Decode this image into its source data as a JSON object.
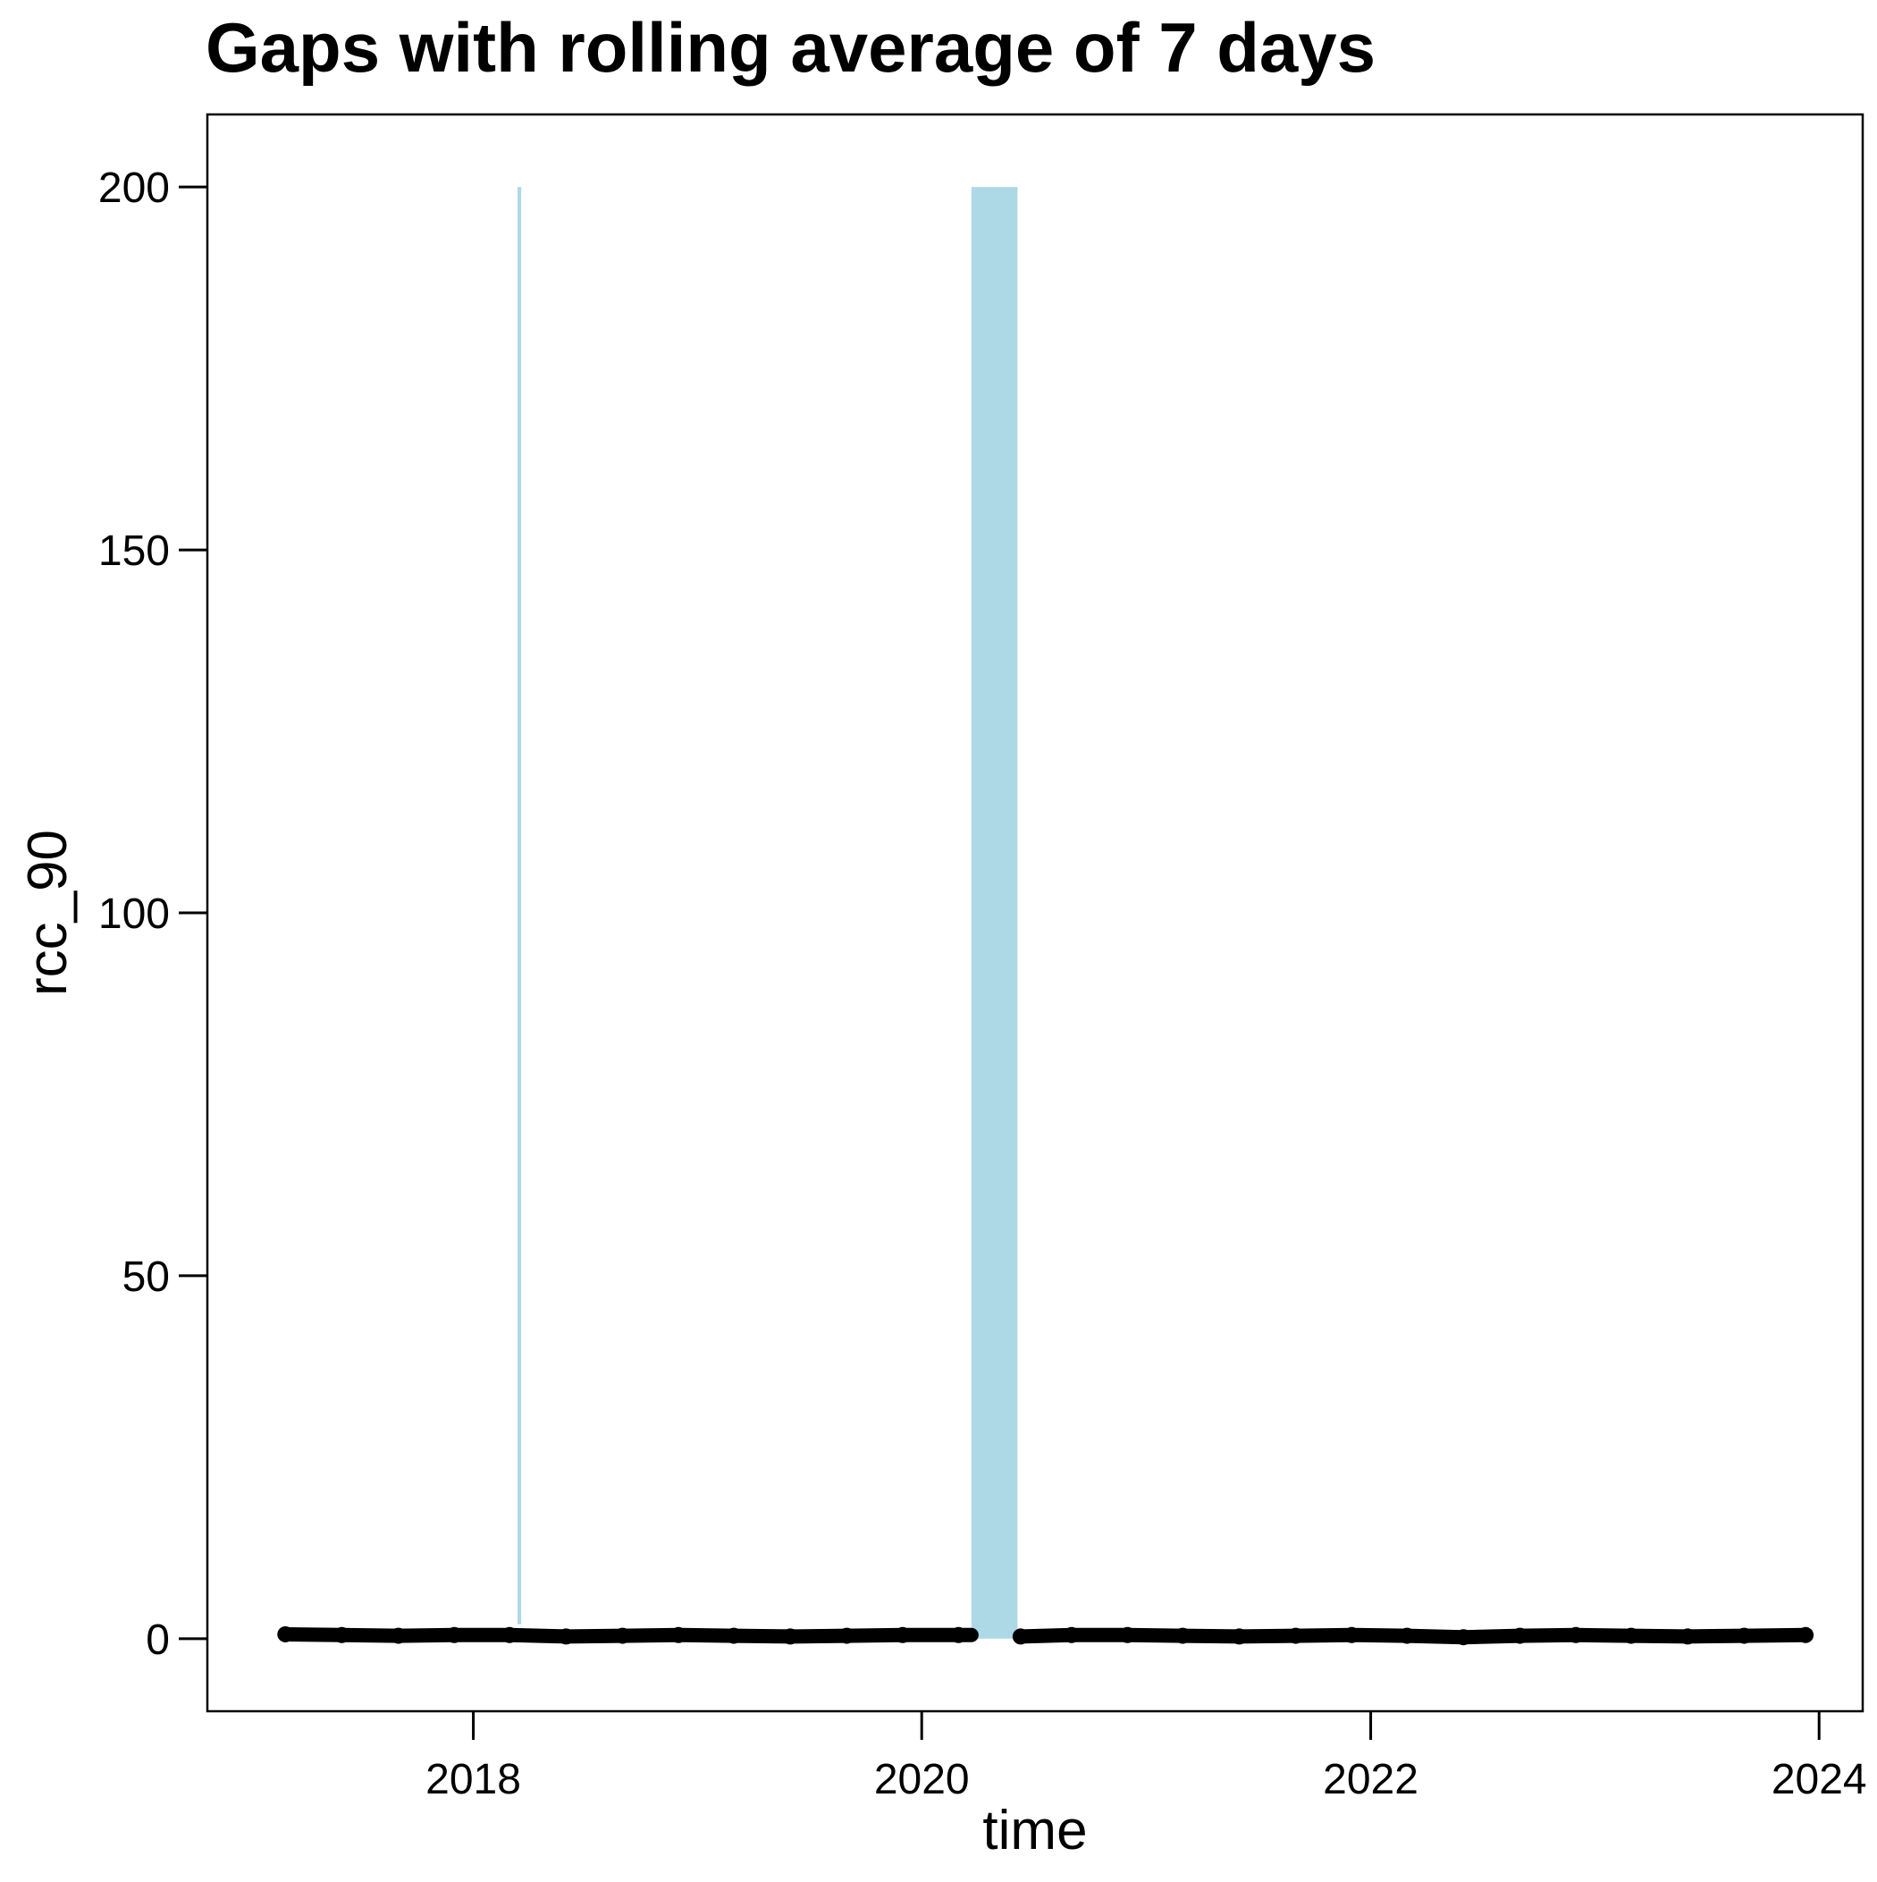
{
  "chart_data": {
    "type": "scatter",
    "title": "Gaps with rolling average of 7 days",
    "xlabel": "time",
    "ylabel": "rcc_90",
    "x_axis": {
      "kind": "date",
      "range": [
        "2016-10-25",
        "2024-03-12"
      ],
      "ticks": [
        "2018-01-01",
        "2020-01-01",
        "2022-01-01",
        "2024-01-01"
      ],
      "tick_labels": [
        "2018",
        "2020",
        "2022",
        "2024"
      ]
    },
    "y_axis": {
      "range": [
        -10,
        210
      ],
      "ticks": [
        0,
        50,
        100,
        150,
        200
      ],
      "tick_labels": [
        "0",
        "50",
        "100",
        "150",
        "200"
      ]
    },
    "grid": false,
    "legend": "none",
    "gap_bands": {
      "color": "#add8e6",
      "top_value": 200,
      "bands": [
        {
          "start": "2018-03-14",
          "end": "2018-03-20",
          "y_from": 2
        },
        {
          "start": "2020-03-22",
          "end": "2020-06-05",
          "y_from": 0
        }
      ]
    },
    "series": [
      {
        "color": "#000000",
        "x": [
          "2017-03-01",
          "2017-06-01",
          "2017-09-01",
          "2017-12-01",
          "2018-03-01",
          "2018-06-01",
          "2018-09-01",
          "2018-12-01",
          "2019-03-01",
          "2019-06-01",
          "2019-09-01",
          "2019-12-01",
          "2020-03-01",
          "2020-06-10",
          "2020-09-01",
          "2020-12-01",
          "2021-03-01",
          "2021-06-01",
          "2021-09-01",
          "2021-12-01",
          "2022-03-01",
          "2022-06-01",
          "2022-09-01",
          "2022-12-01",
          "2023-03-01",
          "2023-06-01",
          "2023-09-01",
          "2023-12-10"
        ],
        "y": [
          0.6,
          0.5,
          0.4,
          0.5,
          0.5,
          0.3,
          0.4,
          0.5,
          0.4,
          0.3,
          0.4,
          0.5,
          0.5,
          0.3,
          0.5,
          0.5,
          0.4,
          0.3,
          0.4,
          0.5,
          0.4,
          0.2,
          0.4,
          0.5,
          0.4,
          0.3,
          0.4,
          0.5
        ]
      }
    ]
  }
}
